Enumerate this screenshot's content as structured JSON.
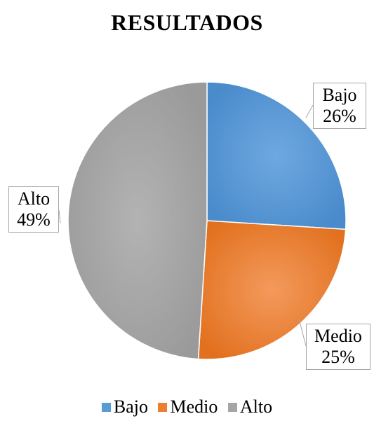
{
  "chart_data": {
    "type": "pie",
    "title": "RESULTADOS",
    "slices": [
      {
        "label": "Bajo",
        "value": 26,
        "value_label": "26%",
        "color": "#5b9bd5"
      },
      {
        "label": "Medio",
        "value": 25,
        "value_label": "25%",
        "color": "#ed7d31"
      },
      {
        "label": "Alto",
        "value": 49,
        "value_label": "49%",
        "color": "#a5a5a5"
      }
    ],
    "start_angle": "12 o'clock",
    "direction": "clockwise",
    "legend_position": "bottom"
  }
}
